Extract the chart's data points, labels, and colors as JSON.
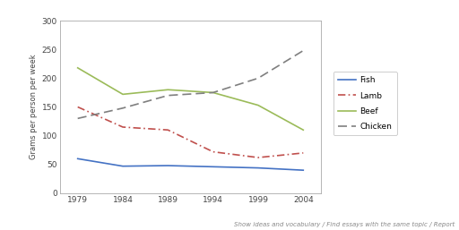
{
  "years": [
    1979,
    1984,
    1989,
    1994,
    1999,
    2004
  ],
  "fish": [
    60,
    47,
    48,
    46,
    44,
    40
  ],
  "lamb": [
    150,
    115,
    110,
    72,
    62,
    70
  ],
  "beef": [
    218,
    172,
    180,
    175,
    153,
    110
  ],
  "chicken": [
    130,
    148,
    170,
    175,
    200,
    248
  ],
  "fish_color": "#4472C4",
  "lamb_color": "#C0504D",
  "beef_color": "#9BBB59",
  "chicken_color": "#7f7f7f",
  "ylabel": "Grams per person per week",
  "ylim": [
    0,
    300
  ],
  "yticks": [
    0,
    50,
    100,
    150,
    200,
    250,
    300
  ],
  "fig_bg": "#ffffff",
  "plot_bg": "#ffffff",
  "top_bar_color": "#7db940",
  "border_color": "#aaaaaa",
  "footer_text": "Show ideas and vocabulary / Find essays with the same topic / Report",
  "legend_labels": [
    "Fish",
    "Lamb",
    "Beef",
    "Chicken"
  ]
}
